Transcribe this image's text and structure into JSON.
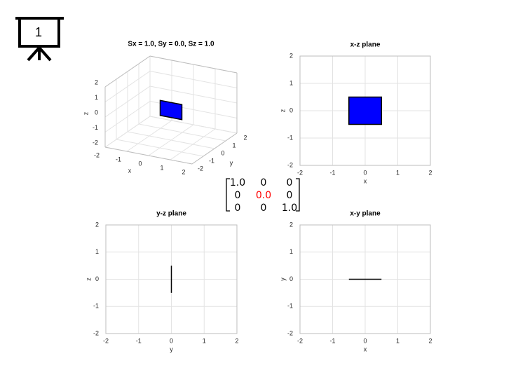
{
  "slide_number": "1",
  "matrix": {
    "rows": [
      [
        "1.0",
        "0",
        "0"
      ],
      [
        "0",
        "0.0",
        "0"
      ],
      [
        "0",
        "0",
        "1.0"
      ]
    ],
    "highlight": [
      1,
      1
    ],
    "highlight_color": "#ff0000"
  },
  "chart_data": [
    {
      "type": "surface3d",
      "title": "Sx = 1.0, Sy = 0.0, Sz = 1.0",
      "xlabel": "x",
      "ylabel": "y",
      "zlabel": "z",
      "xlim": [
        -2,
        2
      ],
      "ylim": [
        -2,
        2
      ],
      "zlim": [
        -2,
        2
      ],
      "xticks": [
        -2,
        -1,
        0,
        1,
        2
      ],
      "yticks": [
        -2,
        -1,
        0,
        1,
        2
      ],
      "zticks": [
        -2,
        -1,
        0,
        1,
        2
      ],
      "x": [
        -0.5,
        0.5,
        0.5,
        -0.5
      ],
      "y": [
        0,
        0,
        0,
        0
      ],
      "z": [
        -0.5,
        -0.5,
        0.5,
        0.5
      ],
      "color": "#0000ff",
      "edgecolor": "#000000",
      "grid": true
    },
    {
      "type": "polygon",
      "title": "x-z plane",
      "xlabel": "x",
      "ylabel": "z",
      "xlim": [
        -2,
        2
      ],
      "ylim": [
        -2,
        2
      ],
      "xticks": [
        -2,
        -1,
        0,
        1,
        2
      ],
      "yticks": [
        -2,
        -1,
        0,
        1,
        2
      ],
      "x": [
        -0.5,
        0.5,
        0.5,
        -0.5
      ],
      "y": [
        -0.5,
        -0.5,
        0.5,
        0.5
      ],
      "color": "#0000ff",
      "edgecolor": "#000000",
      "grid": true
    },
    {
      "type": "polygon",
      "title": "y-z plane",
      "xlabel": "y",
      "ylabel": "z",
      "xlim": [
        -2,
        2
      ],
      "ylim": [
        -2,
        2
      ],
      "xticks": [
        -2,
        -1,
        0,
        1,
        2
      ],
      "yticks": [
        -2,
        -1,
        0,
        1,
        2
      ],
      "x": [
        0,
        0,
        0,
        0
      ],
      "y": [
        -0.5,
        -0.5,
        0.5,
        0.5
      ],
      "color": "#0000ff",
      "edgecolor": "#000000",
      "grid": true
    },
    {
      "type": "polygon",
      "title": "x-y plane",
      "xlabel": "x",
      "ylabel": "y",
      "xlim": [
        -2,
        2
      ],
      "ylim": [
        -2,
        2
      ],
      "xticks": [
        -2,
        -1,
        0,
        1,
        2
      ],
      "yticks": [
        -2,
        -1,
        0,
        1,
        2
      ],
      "x": [
        -0.5,
        0.5,
        0.5,
        -0.5
      ],
      "y": [
        0,
        0,
        0,
        0
      ],
      "color": "#0000ff",
      "edgecolor": "#000000",
      "grid": true
    }
  ]
}
